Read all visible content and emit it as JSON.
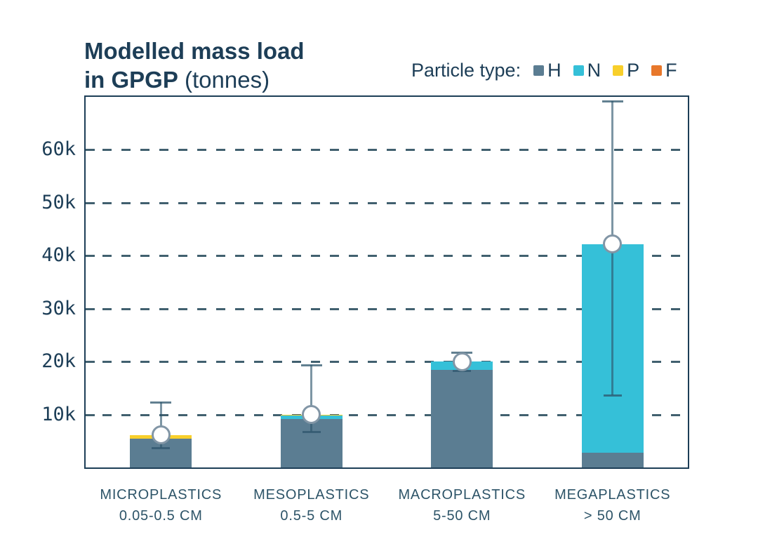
{
  "title": {
    "line1": "Modelled mass load",
    "line2_bold": "in GPGP",
    "line2_normal": " (tonnes)"
  },
  "legend": {
    "label": "Particle type:",
    "items": [
      {
        "key": "H",
        "color": "#5b7d92"
      },
      {
        "key": "N",
        "color": "#35c0d8"
      },
      {
        "key": "P",
        "color": "#f8cf2b"
      },
      {
        "key": "F",
        "color": "#e8782b"
      }
    ]
  },
  "chart_data": {
    "type": "bar",
    "stacked": true,
    "title": "Modelled mass load in GPGP (tonnes)",
    "xlabel": "",
    "ylabel": "tonnes",
    "grid": "horizontal-dashed",
    "legend_position": "top-right",
    "categories": [
      "MICROPLASTICS",
      "MESOPLASTICS",
      "MACROPLASTICS",
      "MEGAPLASTICS"
    ],
    "category_sublabels": [
      "0.05-0.5 CM",
      "0.5-5 CM",
      "5-50 CM",
      "> 50 CM"
    ],
    "series": [
      {
        "name": "H",
        "values": [
          5500,
          9200,
          18400,
          2800
        ]
      },
      {
        "name": "N",
        "values": [
          0,
          600,
          1600,
          39400
        ]
      },
      {
        "name": "P",
        "values": [
          600,
          200,
          0,
          0
        ]
      },
      {
        "name": "F",
        "values": [
          0,
          0,
          0,
          0
        ]
      }
    ],
    "totals": [
      6100,
      10000,
      20000,
      42200
    ],
    "error_bars": [
      {
        "low": 3700,
        "high": 12300,
        "marker": 6100
      },
      {
        "low": 6700,
        "high": 19300,
        "marker": 10000
      },
      {
        "low": 18300,
        "high": 21700,
        "marker": 20000
      },
      {
        "low": 13600,
        "high": 69200,
        "marker": 42200
      }
    ],
    "ylim": [
      0,
      70000
    ],
    "yticks": [
      {
        "value": 10000,
        "label": "10k"
      },
      {
        "value": 20000,
        "label": "20k"
      },
      {
        "value": 30000,
        "label": "30k"
      },
      {
        "value": 40000,
        "label": "40k"
      },
      {
        "value": 50000,
        "label": "50k"
      },
      {
        "value": 60000,
        "label": "60k"
      }
    ]
  },
  "colors": {
    "H": "#5b7d92",
    "N": "#35c0d8",
    "P": "#f8cf2b",
    "F": "#e8782b",
    "axis": "#1d3e57",
    "grid": "#41606f",
    "xlabel_text": "#2d5468",
    "error_stroke": "#8296a6"
  }
}
